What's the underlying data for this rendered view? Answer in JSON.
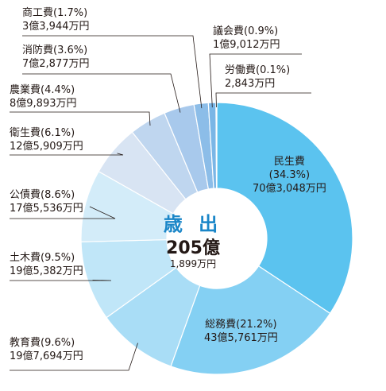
{
  "chart_data": {
    "type": "pie",
    "center": {
      "title": "歳 出",
      "main": "205億",
      "sub": "1,899万円"
    },
    "slices": [
      {
        "name": "民生費",
        "pct_label": "(34.3%)",
        "amount": "70億3,048万円",
        "value": 34.3,
        "color": "#5bc3ef"
      },
      {
        "name": "総務費",
        "pct_label": "(21.2%)",
        "amount": "43億5,761万円",
        "value": 21.2,
        "color": "#84d0f3"
      },
      {
        "name": "教育費",
        "pct_label": "(9.6%)",
        "amount": "19億7,694万円",
        "value": 9.6,
        "color": "#a9ddf6"
      },
      {
        "name": "土木費",
        "pct_label": "(9.5%)",
        "amount": "19億5,382万円",
        "value": 9.5,
        "color": "#c0e6f8"
      },
      {
        "name": "公債費",
        "pct_label": "(8.6%)",
        "amount": "17億5,536万円",
        "value": 8.6,
        "color": "#d3ecf9"
      },
      {
        "name": "衛生費",
        "pct_label": "(6.1%)",
        "amount": "12億5,909万円",
        "value": 6.1,
        "color": "#d8e4f3"
      },
      {
        "name": "農業費",
        "pct_label": "(4.4%)",
        "amount": "8億9,893万円",
        "value": 4.4,
        "color": "#bfd6ef"
      },
      {
        "name": "消防費",
        "pct_label": "(3.6%)",
        "amount": "7億2,877万円",
        "value": 3.6,
        "color": "#a8c9ec"
      },
      {
        "name": "商工費",
        "pct_label": "(1.7%)",
        "amount": "3億3,944万円",
        "value": 1.7,
        "color": "#8cbde8"
      },
      {
        "name": "議会費",
        "pct_label": "(0.9%)",
        "amount": "1億9,012万円",
        "value": 0.9,
        "color": "#7ab6e6"
      },
      {
        "name": "労働費",
        "pct_label": "(0.1%)",
        "amount": "2,843万円",
        "value": 0.1,
        "color": "#6aaee4"
      }
    ]
  }
}
